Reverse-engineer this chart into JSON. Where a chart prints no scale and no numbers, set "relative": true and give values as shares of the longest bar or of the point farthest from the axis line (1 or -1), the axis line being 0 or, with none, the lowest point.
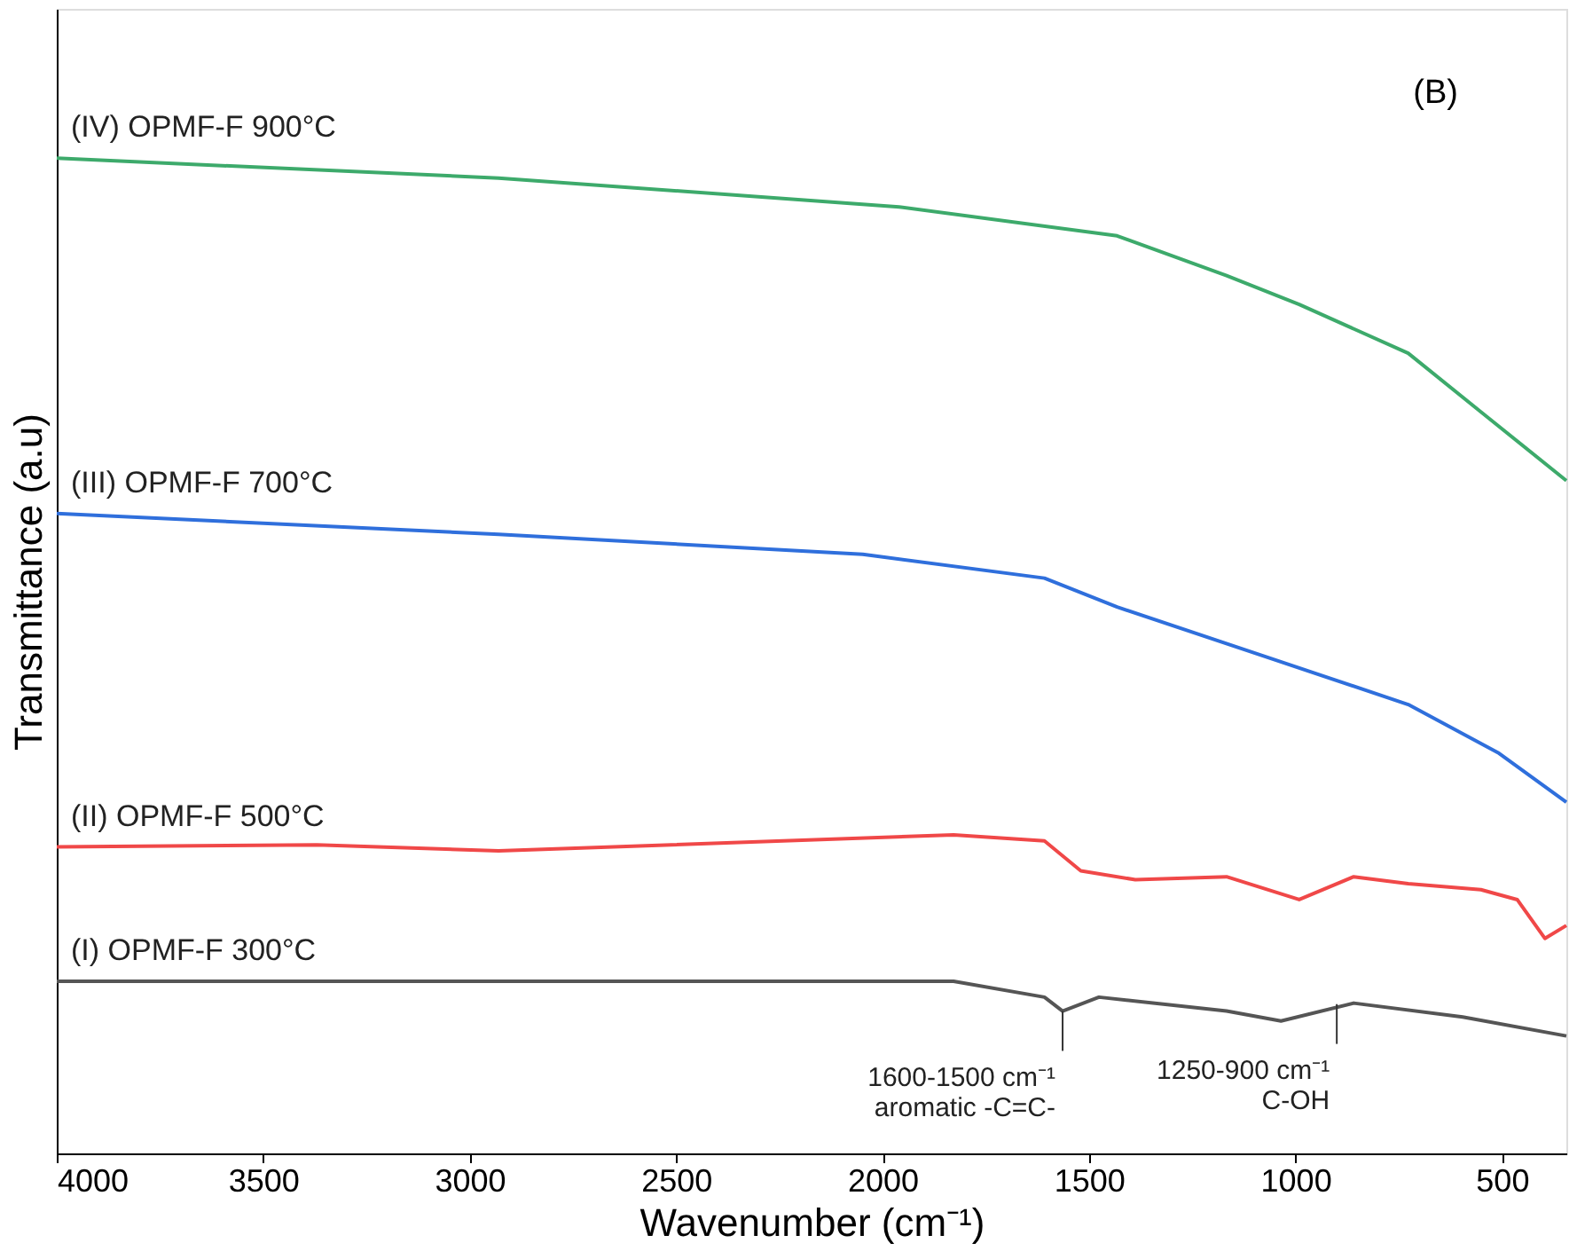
{
  "chart_data": {
    "type": "line",
    "relative": true,
    "xlabel": "Wavenumber (cm⁻¹)",
    "ylabel": "Transmittance (a.u)",
    "xlim": [
      4000,
      344
    ],
    "xticks": [
      4000,
      3500,
      3000,
      2500,
      2000,
      1500,
      1000,
      500
    ],
    "grid": false,
    "legend": false,
    "marker": "none",
    "line_style": "solid",
    "tick_labels": "x",
    "series": [
      {
        "name": "(IV) OPMF-F 900°C",
        "color": "#3daa6b",
        "x": [
          4000,
          2930,
          1960,
          1432,
          1167,
          991,
          727,
          551,
          344
        ],
        "values": [
          1.0,
          0.98,
          0.951,
          0.922,
          0.882,
          0.853,
          0.804,
          0.745,
          0.676
        ]
      },
      {
        "name": "(III) OPMF-F 700°C",
        "color": "#2f6fdc",
        "x": [
          4000,
          2930,
          2048,
          1608,
          1432,
          1079,
          727,
          507,
          344
        ],
        "values": [
          0.643,
          0.622,
          0.602,
          0.578,
          0.549,
          0.5,
          0.451,
          0.402,
          0.353
        ]
      },
      {
        "name": "(II) OPMF-F 500°C",
        "color": "#f04848",
        "x": [
          4000,
          3370,
          2930,
          1828,
          1608,
          1520,
          1388,
          1167,
          991,
          859,
          727,
          551,
          463,
          396,
          344
        ],
        "values": [
          0.308,
          0.31,
          0.304,
          0.32,
          0.314,
          0.284,
          0.275,
          0.278,
          0.255,
          0.278,
          0.271,
          0.265,
          0.255,
          0.216,
          0.229
        ]
      },
      {
        "name": "(I) OPMF-F 300°C",
        "color": "#555555",
        "x": [
          4000,
          1828,
          1608,
          1564,
          1476,
          1167,
          1035,
          859,
          595,
          344
        ],
        "values": [
          0.173,
          0.173,
          0.157,
          0.143,
          0.157,
          0.143,
          0.133,
          0.151,
          0.137,
          0.118
        ]
      }
    ],
    "annotations": [
      "(B)",
      {
        "text": "1600-1500 cm⁻¹\naromatic -C=C-",
        "x": 1564,
        "y": 0.143
      },
      {
        "text": "1250-900 cm⁻¹\nC-OH",
        "x": 900,
        "y": 0.15
      }
    ]
  }
}
